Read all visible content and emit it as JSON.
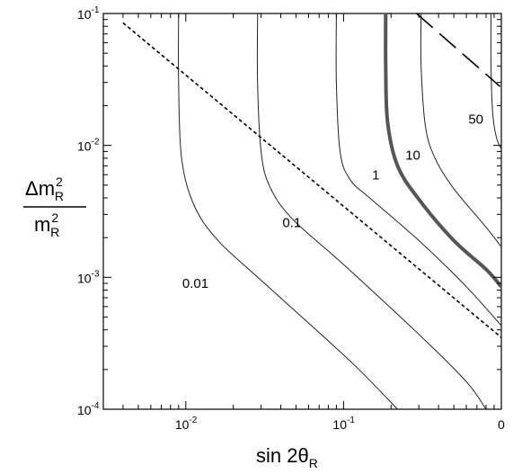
{
  "chart_data": {
    "type": "line",
    "title": "",
    "xlabel": {
      "main": "sin 2θ",
      "sub": "R"
    },
    "ylabel": {
      "numerator_main": "Δm",
      "numerator_sup": "2",
      "numerator_sub": "R",
      "denominator_main": "m",
      "denominator_sup": "2",
      "denominator_sub": "R"
    },
    "x_scale": "log",
    "y_scale": "log",
    "xlim": [
      0.003,
      1.0
    ],
    "ylim": [
      0.0001,
      0.1
    ],
    "grid": false,
    "legend": "none",
    "x_ticks": [
      {
        "value": 0.01,
        "base": "10",
        "exp": "-2"
      },
      {
        "value": 0.1,
        "base": "10",
        "exp": "-1"
      },
      {
        "value": 1.0,
        "base": "0",
        "exp": ""
      }
    ],
    "y_ticks": [
      {
        "value": 0.0001,
        "base": "10",
        "exp": "-4"
      },
      {
        "value": 0.001,
        "base": "10",
        "exp": "-3"
      },
      {
        "value": 0.01,
        "base": "10",
        "exp": "-2"
      },
      {
        "value": 0.1,
        "base": "10",
        "exp": "-1"
      }
    ],
    "series": [
      {
        "label": "0.01",
        "style": "thin",
        "label_at": {
          "x": 0.0115,
          "y": 0.00083
        },
        "points": [
          [
            0.009,
            0.1
          ],
          [
            0.009,
            0.03
          ],
          [
            0.0094,
            0.008
          ],
          [
            0.0113,
            0.0035
          ],
          [
            0.016,
            0.0019
          ],
          [
            0.03,
            0.00095
          ],
          [
            0.06,
            0.00045
          ],
          [
            0.12,
            0.00021
          ],
          [
            0.22,
            0.0001
          ]
        ]
      },
      {
        "label": "0.1",
        "style": "thin",
        "label_at": {
          "x": 0.047,
          "y": 0.0024
        },
        "points": [
          [
            0.0285,
            0.1
          ],
          [
            0.0285,
            0.03
          ],
          [
            0.03,
            0.009
          ],
          [
            0.034,
            0.0049
          ],
          [
            0.047,
            0.0028
          ],
          [
            0.1,
            0.00125
          ],
          [
            0.3,
            0.00037
          ],
          [
            0.6,
            0.000162
          ],
          [
            0.8,
            0.0001
          ]
        ]
      },
      {
        "label": "1",
        "style": "thin",
        "label_at": {
          "x": 0.16,
          "y": 0.0055
        },
        "points": [
          [
            0.09,
            0.1
          ],
          [
            0.09,
            0.03
          ],
          [
            0.095,
            0.009
          ],
          [
            0.11,
            0.0055
          ],
          [
            0.15,
            0.0039
          ],
          [
            0.3,
            0.0019
          ],
          [
            0.6,
            0.00085
          ],
          [
            1.0,
            0.00043
          ]
        ]
      },
      {
        "label": "10",
        "style": "thick",
        "label_at": {
          "x": 0.275,
          "y": 0.0078
        },
        "points": [
          [
            0.185,
            0.1
          ],
          [
            0.185,
            0.04
          ],
          [
            0.19,
            0.015
          ],
          [
            0.22,
            0.007
          ],
          [
            0.3,
            0.0039
          ],
          [
            0.5,
            0.0019
          ],
          [
            0.8,
            0.00115
          ],
          [
            1.0,
            0.00085
          ]
        ]
      },
      {
        "label": "",
        "style": "thin",
        "label_at": null,
        "points": [
          [
            0.31,
            0.1
          ],
          [
            0.31,
            0.04
          ],
          [
            0.33,
            0.014
          ],
          [
            0.38,
            0.008
          ],
          [
            0.5,
            0.0047
          ],
          [
            0.8,
            0.0024
          ],
          [
            1.0,
            0.0017
          ]
        ]
      },
      {
        "label": "50",
        "style": "thin",
        "label_at": {
          "x": 0.69,
          "y": 0.0146
        },
        "points": [
          [
            0.86,
            0.1
          ],
          [
            0.86,
            0.04
          ],
          [
            0.88,
            0.018
          ],
          [
            0.93,
            0.0115
          ],
          [
            1.0,
            0.0094
          ]
        ]
      },
      {
        "label": "",
        "style": "dotted",
        "points": [
          [
            0.004,
            0.085
          ],
          [
            1.0,
            0.00035
          ]
        ]
      },
      {
        "label": "",
        "style": "dashed",
        "points": [
          [
            0.29,
            0.1
          ],
          [
            0.98,
            0.028
          ]
        ]
      }
    ]
  }
}
